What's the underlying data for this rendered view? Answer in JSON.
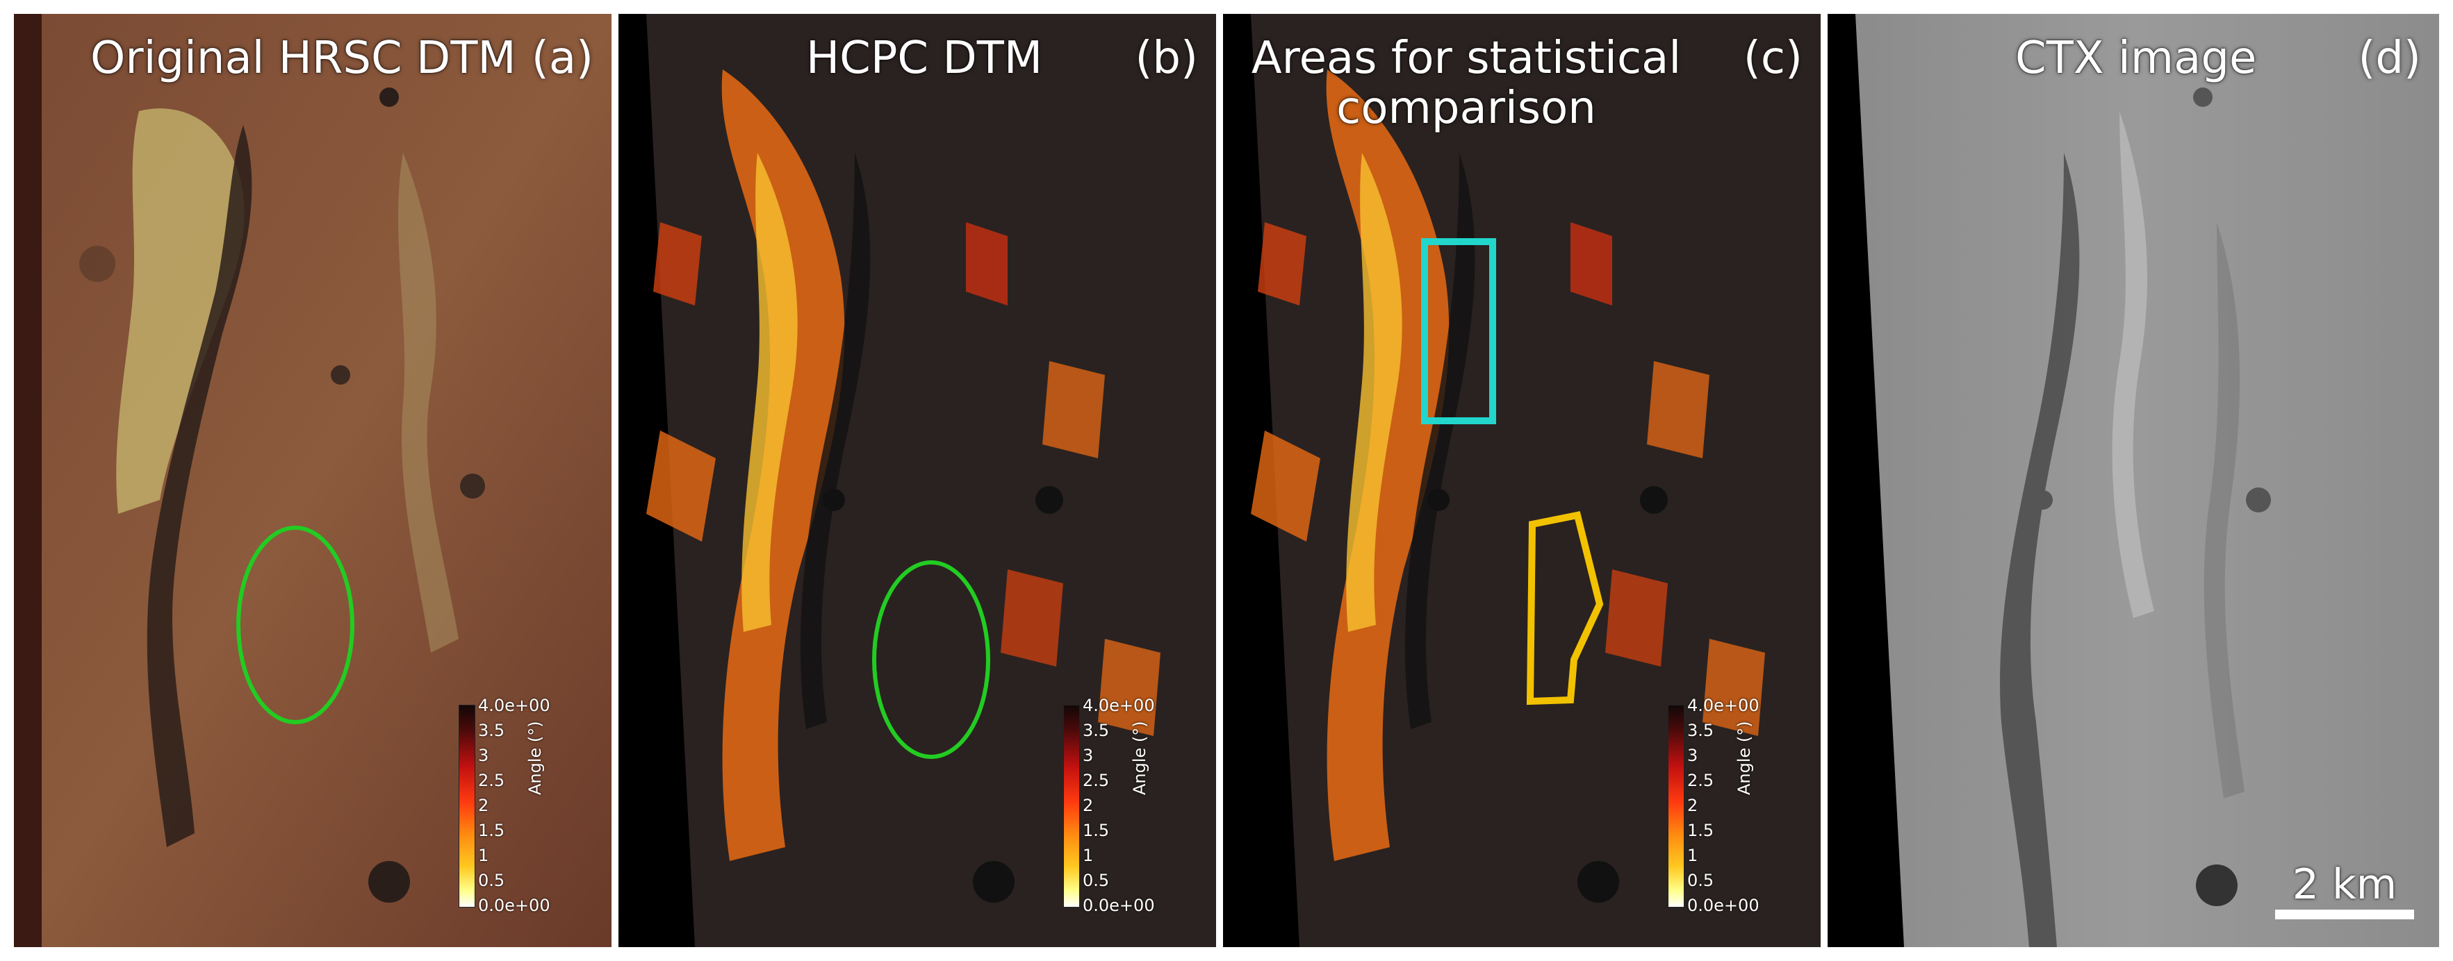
{
  "panels": [
    {
      "title": "Original HRSC DTM",
      "label": "(a)"
    },
    {
      "title": "HCPC DTM",
      "label": "(b)"
    },
    {
      "title": "Areas for statistical comparison",
      "label": "(c)"
    },
    {
      "title": "CTX image",
      "label": "(d)"
    }
  ],
  "colorbar": {
    "title": "Angle (°)",
    "ticks": [
      "4.0e+00",
      "3.5",
      "3",
      "2.5",
      "2",
      "1.5",
      "1",
      "0.5",
      "0.0e+00"
    ]
  },
  "scalebar": {
    "label": "2 km"
  },
  "colors": {
    "ellipse": "#22cc22",
    "rectangle": "#22d6cc",
    "polygon": "#f2c200"
  }
}
